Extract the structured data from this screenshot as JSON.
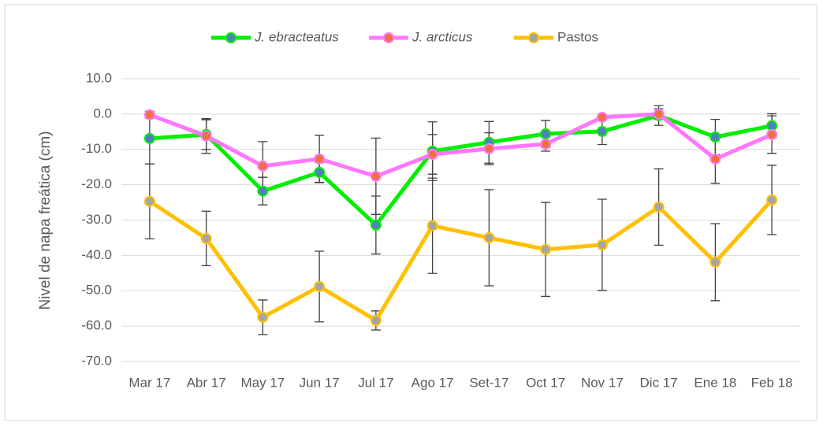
{
  "chart_data": {
    "type": "line",
    "ylabel": "Nivel de napa freática (cm)",
    "categories": [
      "Mar 17",
      "Abr 17",
      "May 17",
      "Jun 17",
      "Jul 17",
      "Ago 17",
      "Set-17",
      "Oct 17",
      "Nov 17",
      "Dic 17",
      "Ene 18",
      "Feb 18"
    ],
    "series": [
      {
        "name": "J. ebracteatus",
        "italic": true,
        "color": "#00ee00",
        "marker_color": "#4f81bd",
        "values": [
          -6.9,
          -5.8,
          -21.8,
          -16.5,
          -31.4,
          -10.5,
          -8.0,
          -5.6,
          -4.9,
          -0.4,
          -6.5,
          -3.3
        ],
        "errors": [
          7.2,
          4.2,
          3.9,
          2.8,
          8.2,
          8.3,
          5.9,
          3.8,
          3.7,
          2.8,
          5.0,
          3.4
        ]
      },
      {
        "name": "J. arcticus",
        "italic": true,
        "color": "#ff77ff",
        "marker_color": "#f07040",
        "values": [
          -0.2,
          -6.2,
          -14.7,
          -12.7,
          -17.6,
          -11.4,
          -9.8,
          -8.5,
          -0.9,
          0.0,
          -12.7,
          -5.8
        ],
        "errors": [
          1.0,
          4.9,
          6.9,
          6.7,
          10.8,
          5.6,
          4.5,
          2.0,
          0.5,
          1.5,
          6.9,
          5.3
        ]
      },
      {
        "name": "Pastos",
        "italic": false,
        "color": "#ffc000",
        "marker_color": "#a5a5a5",
        "values": [
          -24.7,
          -35.2,
          -57.5,
          -48.8,
          -58.4,
          -31.6,
          -35.0,
          -38.3,
          -37.0,
          -26.3,
          -41.9,
          -24.3
        ],
        "errors": [
          10.6,
          7.7,
          4.9,
          10.0,
          2.7,
          13.5,
          13.6,
          13.3,
          12.9,
          10.8,
          10.9,
          9.8
        ]
      }
    ],
    "error_color": "#404040",
    "ylim": [
      -70,
      10
    ],
    "yticks": [
      {
        "value": -70,
        "label": "-70.0"
      },
      {
        "value": -60,
        "label": "-60.0"
      },
      {
        "value": -50,
        "label": "-50.0"
      },
      {
        "value": -40,
        "label": "-40.0"
      },
      {
        "value": -30,
        "label": "-30.0"
      },
      {
        "value": -20,
        "label": "-20.0"
      },
      {
        "value": -10,
        "label": "-10.0"
      },
      {
        "value": 0,
        "label": "0.0"
      },
      {
        "value": 10,
        "label": "10.0"
      }
    ],
    "grid": true,
    "legend": "top"
  }
}
